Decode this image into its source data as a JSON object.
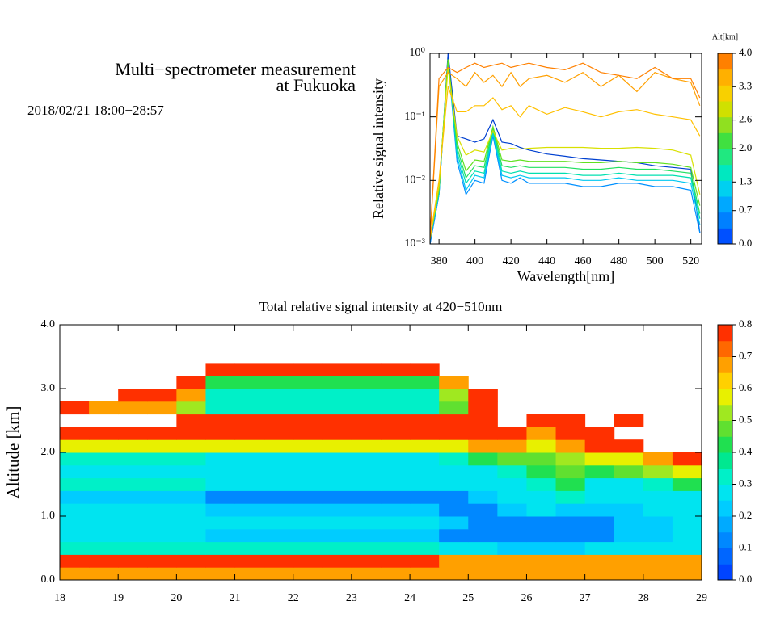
{
  "header": {
    "title": [
      "Multi−spectrometer measurement",
      "at Fukuoka"
    ],
    "subtitle": "2018/02/21 18:00−28:57"
  },
  "chart_data": [
    {
      "type": "line",
      "log_y": true,
      "xlabel": "Wavelength[nm]",
      "ylabel": "Relative signal intensity",
      "x": [
        375,
        380,
        385,
        390,
        395,
        400,
        405,
        410,
        415,
        420,
        425,
        430,
        440,
        450,
        460,
        470,
        480,
        490,
        500,
        510,
        520,
        525
      ],
      "xlim": [
        375,
        526
      ],
      "xticks": [
        380,
        400,
        420,
        440,
        460,
        480,
        500,
        520
      ],
      "ylim": [
        0.001,
        1
      ],
      "yticks": [
        {
          "value": 0.001,
          "label": "10⁻³"
        },
        {
          "value": 0.01,
          "label": "10⁻²"
        },
        {
          "value": 0.1,
          "label": "10⁻¹"
        },
        {
          "value": 1,
          "label": "10⁰"
        }
      ],
      "series": [
        {
          "color": "#0040d0",
          "values": [
            0.001,
            0.006,
            1.0,
            0.05,
            0.045,
            0.04,
            0.045,
            0.09,
            0.04,
            0.038,
            0.033,
            0.03,
            0.026,
            0.024,
            0.022,
            0.021,
            0.02,
            0.019,
            0.017,
            0.016,
            0.015,
            0.0015
          ]
        },
        {
          "color": "#0090ff",
          "values": [
            0.001,
            0.006,
            0.8,
            0.02,
            0.006,
            0.01,
            0.009,
            0.05,
            0.01,
            0.009,
            0.011,
            0.009,
            0.009,
            0.009,
            0.008,
            0.008,
            0.009,
            0.009,
            0.008,
            0.008,
            0.007,
            0.0015
          ]
        },
        {
          "color": "#00c8f0",
          "values": [
            0.0012,
            0.006,
            0.8,
            0.024,
            0.007,
            0.012,
            0.011,
            0.055,
            0.012,
            0.011,
            0.012,
            0.011,
            0.011,
            0.011,
            0.01,
            0.01,
            0.011,
            0.01,
            0.01,
            0.01,
            0.009,
            0.002
          ]
        },
        {
          "color": "#00e0b0",
          "values": [
            0.0012,
            0.007,
            0.8,
            0.028,
            0.009,
            0.014,
            0.013,
            0.06,
            0.014,
            0.013,
            0.014,
            0.013,
            0.013,
            0.013,
            0.012,
            0.012,
            0.013,
            0.012,
            0.012,
            0.012,
            0.011,
            0.0025
          ]
        },
        {
          "color": "#20e060",
          "values": [
            0.0012,
            0.007,
            0.8,
            0.033,
            0.011,
            0.017,
            0.016,
            0.065,
            0.017,
            0.016,
            0.017,
            0.016,
            0.016,
            0.016,
            0.015,
            0.015,
            0.016,
            0.015,
            0.015,
            0.014,
            0.013,
            0.003
          ]
        },
        {
          "color": "#60e020",
          "values": [
            0.0012,
            0.007,
            0.8,
            0.04,
            0.014,
            0.021,
            0.02,
            0.07,
            0.021,
            0.02,
            0.021,
            0.02,
            0.02,
            0.02,
            0.019,
            0.019,
            0.02,
            0.019,
            0.019,
            0.018,
            0.016,
            0.004
          ]
        },
        {
          "color": "#d8e000",
          "values": [
            0.0012,
            0.008,
            0.6,
            0.05,
            0.025,
            0.03,
            0.028,
            0.06,
            0.03,
            0.032,
            0.031,
            0.032,
            0.033,
            0.033,
            0.033,
            0.032,
            0.032,
            0.033,
            0.032,
            0.03,
            0.025,
            0.006
          ]
        },
        {
          "color": "#ffc000",
          "values": [
            0.0012,
            0.01,
            0.3,
            0.12,
            0.12,
            0.15,
            0.15,
            0.2,
            0.13,
            0.15,
            0.1,
            0.15,
            0.11,
            0.14,
            0.12,
            0.1,
            0.12,
            0.13,
            0.11,
            0.1,
            0.09,
            0.05
          ]
        },
        {
          "color": "#ffa000",
          "values": [
            0.0012,
            0.3,
            0.5,
            0.4,
            0.3,
            0.5,
            0.35,
            0.45,
            0.3,
            0.5,
            0.3,
            0.4,
            0.45,
            0.35,
            0.5,
            0.3,
            0.45,
            0.25,
            0.5,
            0.4,
            0.35,
            0.15
          ]
        },
        {
          "color": "#ff8000",
          "values": [
            0.0012,
            0.4,
            0.6,
            0.5,
            0.6,
            0.7,
            0.6,
            0.65,
            0.7,
            0.6,
            0.65,
            0.7,
            0.6,
            0.55,
            0.7,
            0.5,
            0.45,
            0.4,
            0.6,
            0.4,
            0.4,
            0.2
          ]
        }
      ],
      "colorbar": {
        "label": "Alt[km]",
        "lim": [
          0,
          4
        ],
        "ticks": [
          {
            "value": 0,
            "label": "0.0"
          },
          {
            "value": 0.7,
            "label": "0.7"
          },
          {
            "value": 1.3,
            "label": "1.3"
          },
          {
            "value": 2,
            "label": "2.0"
          },
          {
            "value": 2.6,
            "label": "2.6"
          },
          {
            "value": 3.3,
            "label": "3.3"
          },
          {
            "value": 4,
            "label": "4.0"
          }
        ],
        "colors": [
          "#0050ff",
          "#0080ff",
          "#00a8ff",
          "#00d0f0",
          "#00e8c0",
          "#20e880",
          "#40e040",
          "#90e020",
          "#d0e000",
          "#f8d000",
          "#ffb000",
          "#ff8000"
        ]
      }
    },
    {
      "type": "contour",
      "title": "Total relative signal intensity at 420−510nm",
      "ylabel": "Altitude [km]",
      "x": [
        18.25,
        18.75,
        19.25,
        19.75,
        20.25,
        20.75,
        21.25,
        21.75,
        22.25,
        22.75,
        23.25,
        23.75,
        24.25,
        24.75,
        25.25,
        25.75,
        26.25,
        26.75,
        27.25,
        27.75,
        28.25,
        28.75
      ],
      "y": [
        0.1,
        0.3,
        0.5,
        0.7,
        0.9,
        1.1,
        1.3,
        1.5,
        1.7,
        1.9,
        2.1,
        2.3,
        2.5,
        2.7,
        2.9,
        3.1,
        3.3
      ],
      "xlim": [
        18,
        29
      ],
      "xticks": [
        18,
        19,
        20,
        21,
        22,
        23,
        24,
        25,
        26,
        27,
        28,
        29
      ],
      "ylim": [
        0,
        4
      ],
      "yticks": [
        {
          "value": 0,
          "label": "0.0"
        },
        {
          "value": 1,
          "label": "1.0"
        },
        {
          "value": 2,
          "label": "2.0"
        },
        {
          "value": 3,
          "label": "3.0"
        },
        {
          "value": 4,
          "label": "4.0"
        }
      ],
      "z": [
        [
          0.7,
          0.7,
          0.7,
          0.7,
          0.7,
          0.7,
          0.7,
          0.7,
          0.7,
          0.7,
          0.7,
          0.7,
          0.7,
          0.7,
          0.7,
          0.7,
          0.7,
          0.7,
          0.7,
          0.7,
          0.7,
          0.7
        ],
        [
          0.75,
          0.75,
          0.75,
          0.75,
          0.75,
          0.75,
          0.75,
          0.75,
          0.75,
          0.75,
          0.75,
          0.75,
          0.75,
          0.65,
          0.65,
          0.65,
          0.65,
          0.65,
          0.65,
          0.65,
          0.65,
          0.65
        ],
        [
          0.35,
          0.35,
          0.35,
          0.35,
          0.35,
          0.35,
          0.35,
          0.35,
          0.35,
          0.35,
          0.35,
          0.35,
          0.35,
          0.3,
          0.25,
          0.2,
          0.2,
          0.2,
          0.25,
          0.3,
          0.3,
          0.3
        ],
        [
          0.25,
          0.25,
          0.25,
          0.25,
          0.25,
          0.2,
          0.2,
          0.2,
          0.2,
          0.2,
          0.2,
          0.2,
          0.2,
          0.15,
          0.15,
          0.15,
          0.15,
          0.15,
          0.15,
          0.2,
          0.2,
          0.25
        ],
        [
          0.3,
          0.3,
          0.3,
          0.3,
          0.3,
          0.25,
          0.25,
          0.25,
          0.25,
          0.25,
          0.25,
          0.25,
          0.25,
          0.2,
          0.15,
          0.15,
          0.15,
          0.15,
          0.15,
          0.2,
          0.2,
          0.25
        ],
        [
          0.25,
          0.25,
          0.25,
          0.25,
          0.25,
          0.2,
          0.2,
          0.2,
          0.2,
          0.2,
          0.2,
          0.2,
          0.2,
          0.15,
          0.15,
          0.2,
          0.25,
          0.2,
          0.2,
          0.2,
          0.25,
          0.3
        ],
        [
          0.2,
          0.2,
          0.2,
          0.2,
          0.2,
          0.15,
          0.15,
          0.15,
          0.15,
          0.15,
          0.15,
          0.15,
          0.15,
          0.15,
          0.2,
          0.25,
          0.3,
          0.35,
          0.25,
          0.3,
          0.3,
          0.3
        ],
        [
          0.35,
          0.35,
          0.35,
          0.35,
          0.35,
          0.25,
          0.25,
          0.25,
          0.25,
          0.25,
          0.25,
          0.25,
          0.25,
          0.25,
          0.25,
          0.3,
          0.35,
          0.4,
          0.3,
          0.3,
          0.35,
          0.4
        ],
        [
          0.3,
          0.3,
          0.3,
          0.3,
          0.3,
          0.25,
          0.25,
          0.25,
          0.25,
          0.25,
          0.25,
          0.25,
          0.25,
          0.25,
          0.3,
          0.35,
          0.4,
          0.45,
          0.4,
          0.45,
          0.5,
          0.6
        ],
        [
          0.35,
          0.35,
          0.35,
          0.35,
          0.35,
          0.3,
          0.3,
          0.3,
          0.3,
          0.3,
          0.3,
          0.3,
          0.3,
          0.35,
          0.4,
          0.45,
          0.45,
          0.5,
          0.55,
          0.6,
          0.7,
          0.8
        ],
        [
          0.6,
          0.6,
          0.6,
          0.6,
          0.6,
          0.55,
          0.55,
          0.55,
          0.55,
          0.55,
          0.55,
          0.55,
          0.55,
          0.55,
          0.65,
          0.65,
          0.55,
          0.7,
          0.75,
          0.8,
          null,
          null
        ],
        [
          0.8,
          0.8,
          0.8,
          0.8,
          0.8,
          0.8,
          0.8,
          0.8,
          0.8,
          0.8,
          0.8,
          0.8,
          0.8,
          0.8,
          0.8,
          0.8,
          0.7,
          0.8,
          0.8,
          null,
          null,
          null
        ],
        [
          null,
          null,
          null,
          null,
          0.75,
          0.75,
          0.75,
          0.75,
          0.75,
          0.75,
          0.75,
          0.75,
          0.75,
          0.75,
          0.8,
          null,
          0.8,
          0.8,
          null,
          0.8,
          null,
          null
        ],
        [
          0.75,
          0.7,
          0.7,
          0.65,
          0.5,
          0.35,
          0.35,
          0.35,
          0.35,
          0.35,
          0.35,
          0.35,
          0.35,
          0.45,
          0.8,
          null,
          null,
          null,
          null,
          null,
          null,
          null
        ],
        [
          null,
          null,
          0.8,
          0.75,
          0.7,
          0.35,
          0.35,
          0.35,
          0.35,
          0.35,
          0.35,
          0.35,
          0.35,
          0.5,
          0.8,
          null,
          null,
          null,
          null,
          null,
          null,
          null
        ],
        [
          null,
          null,
          null,
          null,
          0.8,
          0.4,
          0.4,
          0.4,
          0.4,
          0.4,
          0.4,
          0.4,
          0.4,
          0.7,
          null,
          null,
          null,
          null,
          null,
          null,
          null,
          null
        ],
        [
          null,
          null,
          null,
          null,
          null,
          0.75,
          0.75,
          0.75,
          0.75,
          0.75,
          0.75,
          0.75,
          0.75,
          null,
          null,
          null,
          null,
          null,
          null,
          null,
          null,
          null
        ]
      ],
      "colorbar": {
        "lim": [
          0,
          0.8
        ],
        "ticks": [
          {
            "value": 0,
            "label": "0.0"
          },
          {
            "value": 0.1,
            "label": "0.1"
          },
          {
            "value": 0.2,
            "label": "0.2"
          },
          {
            "value": 0.3,
            "label": "0.3"
          },
          {
            "value": 0.4,
            "label": "0.4"
          },
          {
            "value": 0.5,
            "label": "0.5"
          },
          {
            "value": 0.6,
            "label": "0.6"
          },
          {
            "value": 0.7,
            "label": "0.7"
          },
          {
            "value": 0.8,
            "label": "0.8"
          }
        ],
        "colors": [
          "#0044ff",
          "#0066ff",
          "#0088ff",
          "#00aaff",
          "#00ccff",
          "#00e4f0",
          "#00f0c8",
          "#00e890",
          "#20e050",
          "#60e030",
          "#a0e820",
          "#e8f000",
          "#ffd000",
          "#ffa000",
          "#ff6800",
          "#ff3000"
        ]
      }
    }
  ]
}
